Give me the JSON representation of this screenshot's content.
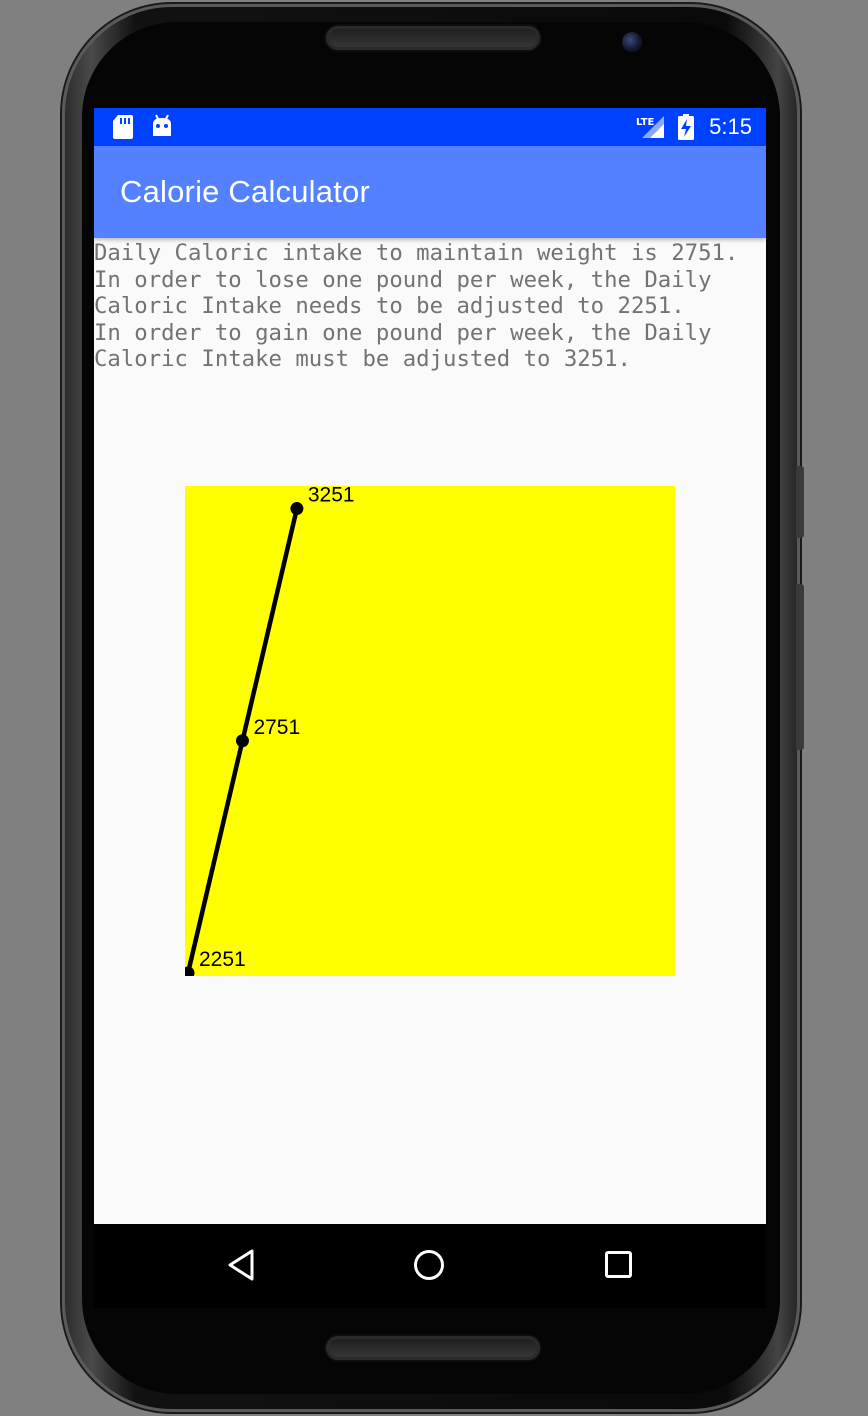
{
  "status_bar": {
    "time": "5:15",
    "network": "LTE",
    "icons": [
      "sd-card-icon",
      "android-icon",
      "lte-signal-icon",
      "battery-charging-icon"
    ]
  },
  "app_bar": {
    "title": "Calorie Calculator"
  },
  "result": {
    "text": "Daily Caloric intake to maintain weight is 2751.\nIn order to lose one pound per week, the Daily\nCaloric Intake needs to be adjusted to 2251.\nIn order to gain one pound per week, the Daily\nCaloric Intake must be adjusted to 3251."
  },
  "chart_data": {
    "type": "line",
    "title": "",
    "xlabel": "",
    "ylabel": "",
    "x": [
      0,
      1,
      2
    ],
    "values": [
      2251,
      2751,
      3251
    ],
    "point_labels": [
      "2251",
      "2751",
      "3251"
    ],
    "xlim": [
      0,
      9
    ],
    "ylim": [
      2251,
      3306
    ],
    "grid": false,
    "legend": "none",
    "background_color": "#ffff00",
    "line_color": "#000000"
  },
  "nav_bar": {
    "icons": [
      "back-icon",
      "home-icon",
      "recents-icon"
    ]
  },
  "colors": {
    "status_bar": "#0040ff",
    "app_bar": "#5381ff",
    "screen_background": "#fafafa",
    "text": "#737373"
  }
}
